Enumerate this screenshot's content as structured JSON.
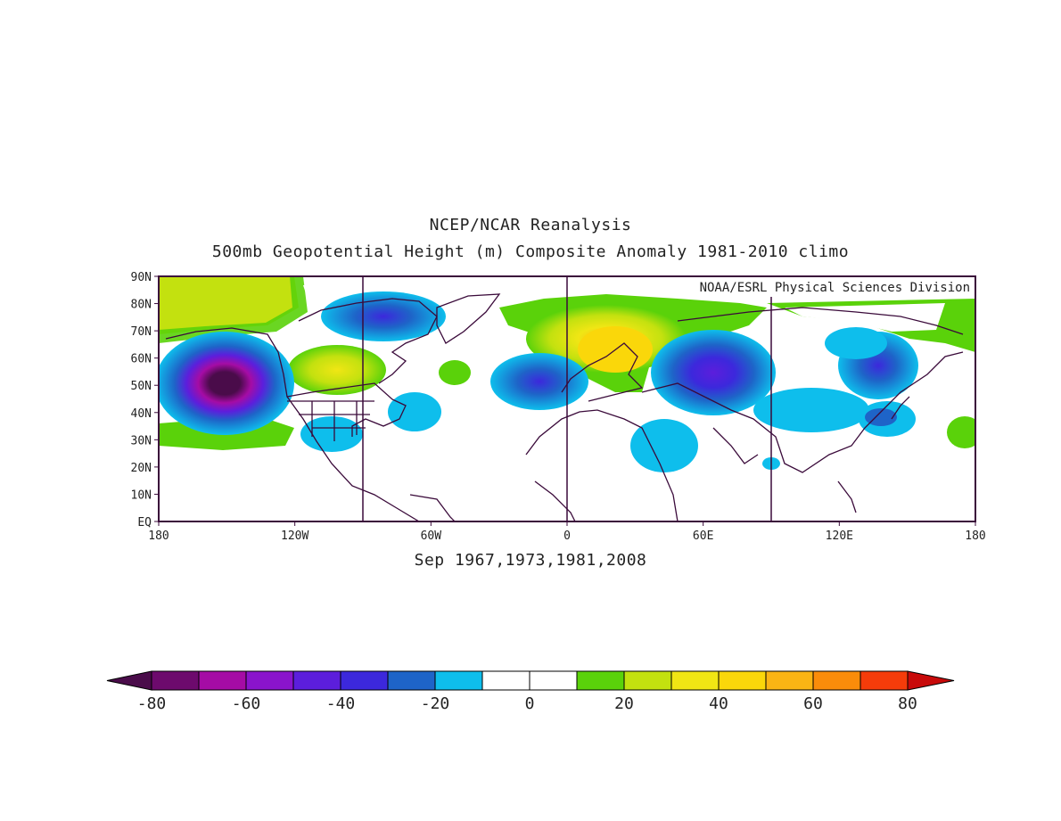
{
  "header": {
    "title": "NCEP/NCAR Reanalysis",
    "subtitle": "500mb Geopotential Height (m) Composite Anomaly 1981-2010 climo"
  },
  "map": {
    "credit": "NOAA/ESRL Physical Sciences Division",
    "x_ticks": [
      "180",
      "120W",
      "60W",
      "0",
      "60E",
      "120E",
      "180"
    ],
    "y_ticks": [
      "90N",
      "80N",
      "70N",
      "60N",
      "50N",
      "40N",
      "30N",
      "20N",
      "10N",
      "EQ"
    ],
    "caption": "Sep 1967,1973,1981,2008",
    "colors": {
      "frame": "#3a0a3a",
      "coast": "#3a0a3a"
    },
    "anomalies": [
      {
        "lon": -150,
        "lat": 50,
        "value": -80
      },
      {
        "lon": -85,
        "lat": 73,
        "value": -30
      },
      {
        "lon": -110,
        "lat": 57,
        "value": 30
      },
      {
        "lon": -170,
        "lat": 80,
        "value": 30
      },
      {
        "lon": -25,
        "lat": 52,
        "value": -40
      },
      {
        "lon": 10,
        "lat": 70,
        "value": 45
      },
      {
        "lon": 15,
        "lat": 60,
        "value": 50
      },
      {
        "lon": 60,
        "lat": 55,
        "value": -50
      },
      {
        "lon": 135,
        "lat": 57,
        "value": -30
      },
      {
        "lon": 118,
        "lat": 65,
        "value": -20
      },
      {
        "lon": -80,
        "lat": 37,
        "value": -20
      }
    ]
  },
  "colorbar": {
    "labels": [
      "-80",
      "-60",
      "-40",
      "-20",
      "0",
      "20",
      "40",
      "60",
      "80"
    ],
    "colors": [
      "#4a0c4a",
      "#6d0a6d",
      "#a50ca5",
      "#8a14cc",
      "#5c1edc",
      "#3c28dc",
      "#1e64c8",
      "#0ebeec",
      "#ffffff",
      "#ffffff",
      "#5ad20a",
      "#c3e10f",
      "#f0e614",
      "#fad70a",
      "#fab414",
      "#fa8c0a",
      "#f53c0a",
      "#c80a0a"
    ]
  }
}
